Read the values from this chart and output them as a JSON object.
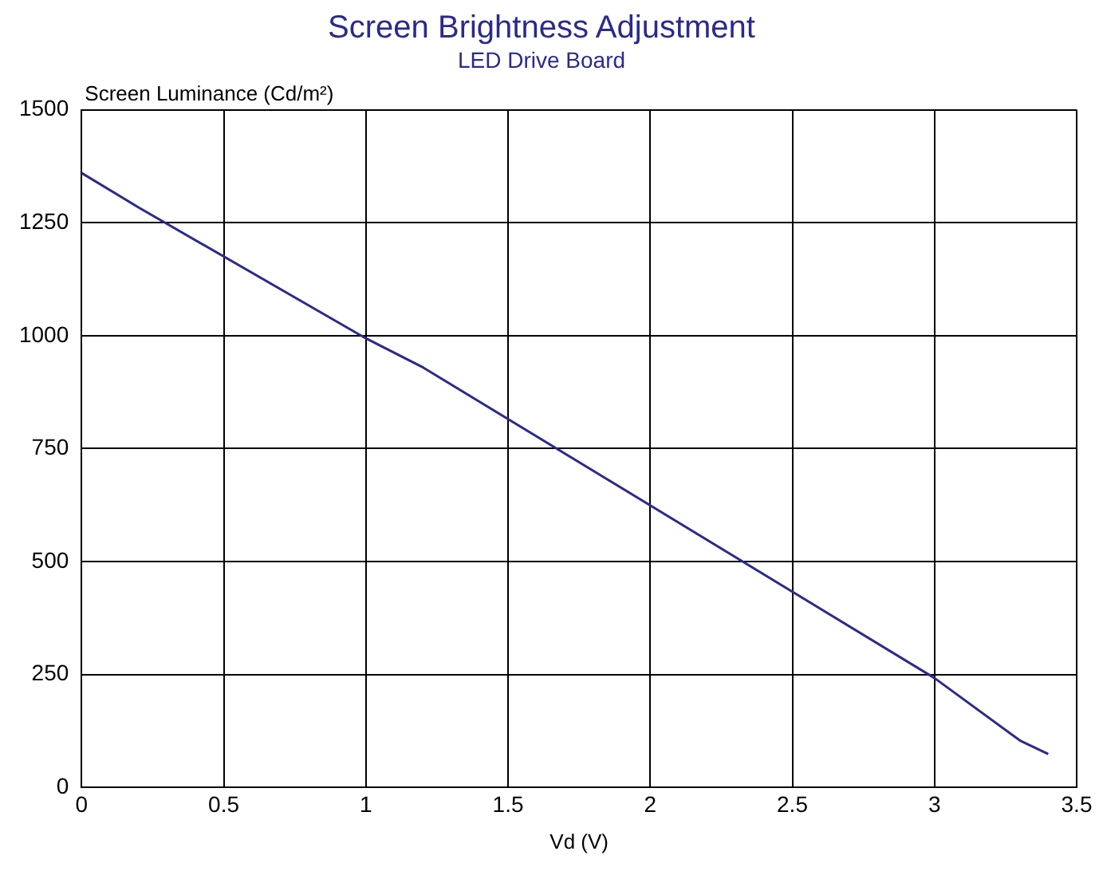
{
  "chart_data": {
    "type": "line",
    "title": "Screen Brightness Adjustment",
    "subtitle": "LED Drive Board",
    "xlabel": "Vd (V)",
    "ylabel": "Screen Luminance (Cd/m²)",
    "x": [
      0,
      0.2,
      1.0,
      1.2,
      3.0,
      3.3,
      3.4
    ],
    "series": [
      {
        "color": "#2a2a8c",
        "values": [
          1360,
          1284,
          994,
          930,
          242,
          104,
          74
        ]
      }
    ],
    "xlim": [
      0,
      3.5
    ],
    "xticks": [
      0,
      0.5,
      1,
      1.5,
      2,
      2.5,
      3,
      3.5
    ],
    "ylim": [
      0,
      1500
    ],
    "yticks": [
      0,
      250,
      500,
      750,
      1000,
      1250,
      1500
    ],
    "grid": true,
    "legend": false,
    "marker": "none",
    "line_style": "solid"
  }
}
